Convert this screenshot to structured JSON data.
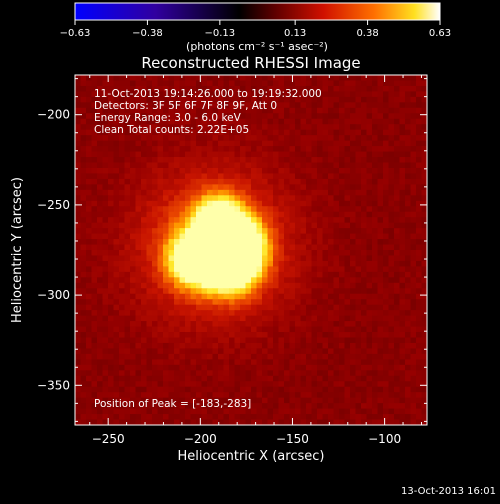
{
  "chart_data": {
    "type": "heatmap",
    "title": "Reconstructed RHESSI Image",
    "xlabel": "Heliocentric X (arcsec)",
    "ylabel": "Heliocentric Y (arcsec)",
    "xlim": [
      -268,
      -77
    ],
    "ylim": [
      -372,
      -178
    ],
    "x_ticks": [
      -250,
      -200,
      -150,
      -100
    ],
    "x_tick_labels": [
      "−250",
      "−200",
      "−150",
      "−100"
    ],
    "y_ticks": [
      -200,
      -250,
      -300,
      -350
    ],
    "y_tick_labels": [
      "−200",
      "−250",
      "−300",
      "−350"
    ],
    "colorbar": {
      "ticks": [
        -0.63,
        -0.38,
        -0.13,
        0.13,
        0.38,
        0.63
      ],
      "tick_labels": [
        "−0.63",
        "−0.38",
        "−0.13",
        "0.13",
        "0.38",
        "0.63"
      ],
      "range": [
        -0.63,
        0.63
      ],
      "unit_label": "(photons cm⁻² s⁻¹ asec⁻²)",
      "colors": [
        "#0000ff",
        "#000000",
        "#d01000",
        "#ff8000",
        "#ffff40",
        "#ffffff"
      ]
    },
    "annotations": [
      "11-Oct-2013 19:14:26.000 to 19:19:32.000",
      "Detectors: 3F 5F 6F 7F 8F 9F, Att 0",
      "Energy Range: 3.0 - 6.0 keV",
      "Clean    Total counts: 2.22E+05"
    ],
    "peak_label": "Position of Peak = [-183,-283]",
    "sources": [
      {
        "x": -183,
        "y": -283,
        "sigma": 11,
        "amp": 0.63
      },
      {
        "x": -203,
        "y": -280,
        "sigma": 10,
        "amp": 0.58
      },
      {
        "x": -190,
        "y": -258,
        "sigma": 9,
        "amp": 0.55
      },
      {
        "x": -178,
        "y": -270,
        "sigma": 9,
        "amp": 0.5
      },
      {
        "x": -193,
        "y": -272,
        "sigma": 28,
        "amp": 0.3
      }
    ],
    "background": 0.1
  },
  "footer": {
    "timestamp": "13-Oct-2013 16:01"
  }
}
